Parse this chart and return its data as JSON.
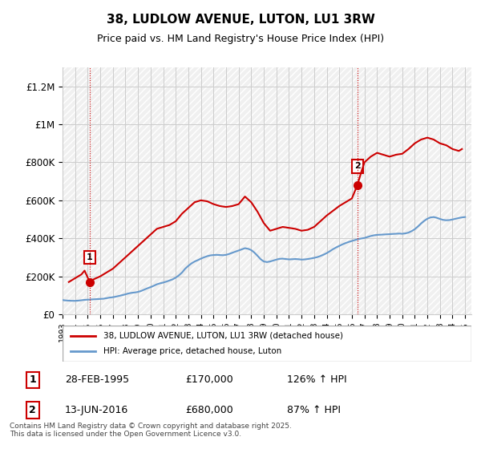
{
  "title": "38, LUDLOW AVENUE, LUTON, LU1 3RW",
  "subtitle": "Price paid vs. HM Land Registry's House Price Index (HPI)",
  "ylabel_ticks": [
    "£0",
    "£200K",
    "£400K",
    "£600K",
    "£800K",
    "£1M",
    "£1.2M"
  ],
  "ylim": [
    0,
    1300000
  ],
  "xlim_start": 1993,
  "xlim_end": 2025.5,
  "background_color": "#ffffff",
  "grid_color": "#cccccc",
  "hatch_color": "#dddddd",
  "sale1_date": 1995.16,
  "sale1_price": 170000,
  "sale1_label": "1",
  "sale2_date": 2016.44,
  "sale2_price": 680000,
  "sale2_label": "2",
  "line1_color": "#cc0000",
  "line2_color": "#6699cc",
  "legend_line1": "38, LUDLOW AVENUE, LUTON, LU1 3RW (detached house)",
  "legend_line2": "HPI: Average price, detached house, Luton",
  "table_row1": [
    "1",
    "28-FEB-1995",
    "£170,000",
    "126% ↑ HPI"
  ],
  "table_row2": [
    "2",
    "13-JUN-2016",
    "£680,000",
    "87% ↑ HPI"
  ],
  "footer": "Contains HM Land Registry data © Crown copyright and database right 2025.\nThis data is licensed under the Open Government Licence v3.0.",
  "hpi_data": {
    "years": [
      1993.0,
      1993.25,
      1993.5,
      1993.75,
      1994.0,
      1994.25,
      1994.5,
      1994.75,
      1995.0,
      1995.25,
      1995.5,
      1995.75,
      1996.0,
      1996.25,
      1996.5,
      1996.75,
      1997.0,
      1997.25,
      1997.5,
      1997.75,
      1998.0,
      1998.25,
      1998.5,
      1998.75,
      1999.0,
      1999.25,
      1999.5,
      1999.75,
      2000.0,
      2000.25,
      2000.5,
      2000.75,
      2001.0,
      2001.25,
      2001.5,
      2001.75,
      2002.0,
      2002.25,
      2002.5,
      2002.75,
      2003.0,
      2003.25,
      2003.5,
      2003.75,
      2004.0,
      2004.25,
      2004.5,
      2004.75,
      2005.0,
      2005.25,
      2005.5,
      2005.75,
      2006.0,
      2006.25,
      2006.5,
      2006.75,
      2007.0,
      2007.25,
      2007.5,
      2007.75,
      2008.0,
      2008.25,
      2008.5,
      2008.75,
      2009.0,
      2009.25,
      2009.5,
      2009.75,
      2010.0,
      2010.25,
      2010.5,
      2010.75,
      2011.0,
      2011.25,
      2011.5,
      2011.75,
      2012.0,
      2012.25,
      2012.5,
      2012.75,
      2013.0,
      2013.25,
      2013.5,
      2013.75,
      2014.0,
      2014.25,
      2014.5,
      2014.75,
      2015.0,
      2015.25,
      2015.5,
      2015.75,
      2016.0,
      2016.25,
      2016.5,
      2016.75,
      2017.0,
      2017.25,
      2017.5,
      2017.75,
      2018.0,
      2018.25,
      2018.5,
      2018.75,
      2019.0,
      2019.25,
      2019.5,
      2019.75,
      2020.0,
      2020.25,
      2020.5,
      2020.75,
      2021.0,
      2021.25,
      2021.5,
      2021.75,
      2022.0,
      2022.25,
      2022.5,
      2022.75,
      2023.0,
      2023.25,
      2023.5,
      2023.75,
      2024.0,
      2024.25,
      2024.5,
      2024.75,
      2025.0
    ],
    "values": [
      75000,
      73000,
      72000,
      71000,
      71000,
      72000,
      74000,
      76000,
      77000,
      78000,
      79000,
      80000,
      81000,
      82000,
      85000,
      88000,
      90000,
      93000,
      97000,
      101000,
      105000,
      110000,
      113000,
      115000,
      118000,
      123000,
      130000,
      137000,
      143000,
      150000,
      158000,
      163000,
      167000,
      172000,
      178000,
      184000,
      193000,
      205000,
      220000,
      240000,
      255000,
      268000,
      278000,
      285000,
      293000,
      300000,
      306000,
      310000,
      312000,
      313000,
      312000,
      311000,
      313000,
      318000,
      324000,
      330000,
      336000,
      342000,
      348000,
      345000,
      338000,
      325000,
      308000,
      290000,
      278000,
      275000,
      278000,
      283000,
      288000,
      292000,
      293000,
      291000,
      289000,
      290000,
      291000,
      290000,
      288000,
      289000,
      291000,
      294000,
      297000,
      301000,
      307000,
      314000,
      322000,
      332000,
      343000,
      352000,
      360000,
      368000,
      375000,
      381000,
      386000,
      391000,
      396000,
      399000,
      402000,
      407000,
      412000,
      416000,
      418000,
      419000,
      420000,
      421000,
      422000,
      423000,
      424000,
      425000,
      424000,
      426000,
      430000,
      438000,
      448000,
      462000,
      478000,
      492000,
      503000,
      510000,
      512000,
      508000,
      502000,
      497000,
      495000,
      496000,
      499000,
      503000,
      507000,
      510000,
      512000
    ]
  },
  "price_data": {
    "years": [
      1993.5,
      1994.0,
      1994.5,
      1994.75,
      1995.16,
      1995.5,
      1996.0,
      1996.5,
      1997.0,
      1997.5,
      1998.0,
      1998.5,
      1999.0,
      1999.5,
      2000.0,
      2000.5,
      2001.0,
      2001.5,
      2002.0,
      2002.5,
      2003.0,
      2003.5,
      2004.0,
      2004.5,
      2005.0,
      2005.5,
      2006.0,
      2006.5,
      2007.0,
      2007.25,
      2007.5,
      2008.0,
      2008.5,
      2009.0,
      2009.5,
      2010.0,
      2010.5,
      2011.0,
      2011.5,
      2012.0,
      2012.5,
      2013.0,
      2013.5,
      2014.0,
      2014.5,
      2015.0,
      2015.5,
      2016.0,
      2016.44,
      2016.75,
      2017.0,
      2017.5,
      2018.0,
      2018.5,
      2019.0,
      2019.5,
      2020.0,
      2020.5,
      2021.0,
      2021.5,
      2022.0,
      2022.5,
      2023.0,
      2023.5,
      2024.0,
      2024.5,
      2024.75
    ],
    "values": [
      170000,
      190000,
      210000,
      230000,
      170000,
      185000,
      200000,
      220000,
      240000,
      270000,
      300000,
      330000,
      360000,
      390000,
      420000,
      450000,
      460000,
      470000,
      490000,
      530000,
      560000,
      590000,
      600000,
      595000,
      580000,
      570000,
      565000,
      570000,
      580000,
      600000,
      620000,
      590000,
      540000,
      480000,
      440000,
      450000,
      460000,
      455000,
      450000,
      440000,
      445000,
      460000,
      490000,
      520000,
      545000,
      570000,
      590000,
      610000,
      680000,
      750000,
      800000,
      830000,
      850000,
      840000,
      830000,
      840000,
      845000,
      870000,
      900000,
      920000,
      930000,
      920000,
      900000,
      890000,
      870000,
      860000,
      870000
    ]
  }
}
